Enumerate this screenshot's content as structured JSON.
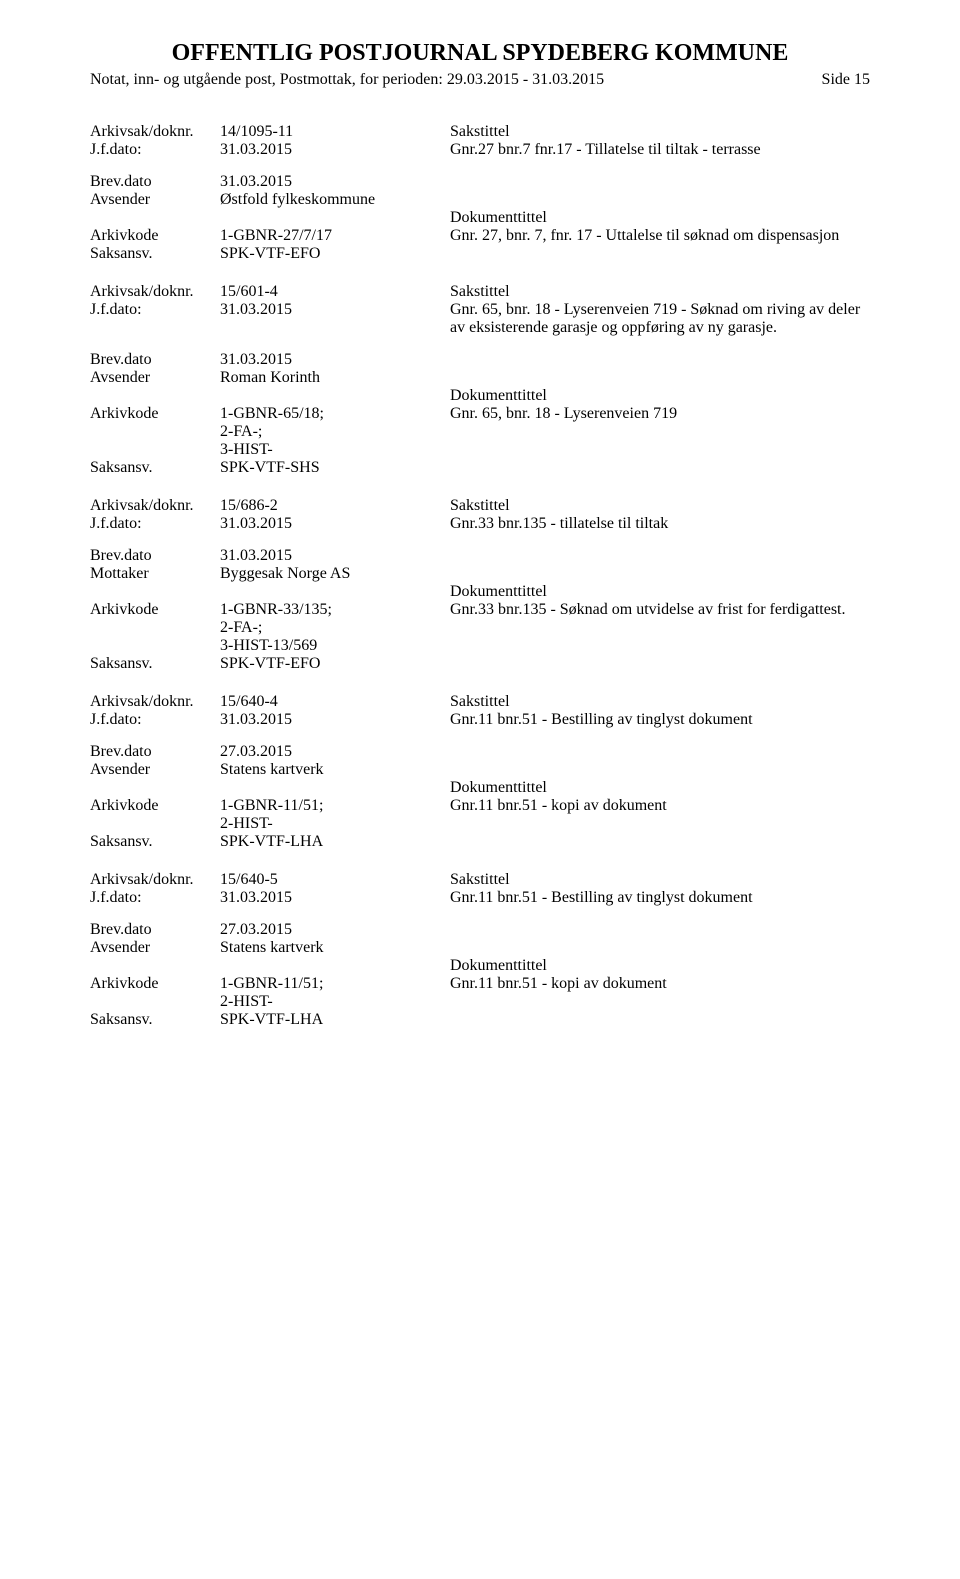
{
  "header": {
    "title": "OFFENTLIG POSTJOURNAL SPYDEBERG KOMMUNE",
    "subtitle": "Notat, inn- og utgående post, Postmottak, for perioden: 29.03.2015 - 31.03.2015",
    "page_label": "Side 15"
  },
  "labels": {
    "arkivsak": "Arkivsak/doknr.",
    "jfdato": "J.f.dato:",
    "brevdato": "Brev.dato",
    "avsender": "Avsender",
    "mottaker": "Mottaker",
    "arkivkode": "Arkivkode",
    "saksansv": "Saksansv.",
    "sakstittel": "Sakstittel",
    "dokumenttittel": "Dokumenttittel"
  },
  "entries": [
    {
      "arkivsak": "14/1095-11",
      "jfdato": "31.03.2015",
      "sakstittel": "Gnr.27 bnr.7 fnr.17 - Tillatelse til tiltak - terrasse",
      "brevdato": "31.03.2015",
      "party_label": "Avsender",
      "party": "Østfold fylkeskommune",
      "arkivkode": "1-GBNR-27/7/17",
      "saksansv": "SPK-VTF-EFO",
      "doktittel": "Gnr. 27, bnr. 7, fnr. 17 - Uttalelse til søknad om dispensasjon"
    },
    {
      "arkivsak": "15/601-4",
      "jfdato": "31.03.2015",
      "sakstittel": "Gnr. 65, bnr. 18 - Lyserenveien 719 - Søknad om riving av deler av eksisterende garasje og oppføring av ny garasje.",
      "brevdato": "31.03.2015",
      "party_label": "Avsender",
      "party": "Roman Korinth",
      "arkivkode": "1-GBNR-65/18;\n2-FA-;\n3-HIST-",
      "saksansv": "SPK-VTF-SHS",
      "doktittel": "Gnr. 65, bnr. 18 - Lyserenveien 719"
    },
    {
      "arkivsak": "15/686-2",
      "jfdato": "31.03.2015",
      "sakstittel": "Gnr.33 bnr.135 -  tillatelse til tiltak",
      "brevdato": "31.03.2015",
      "party_label": "Mottaker",
      "party": "Byggesak Norge AS",
      "arkivkode": "1-GBNR-33/135;\n2-FA-;\n3-HIST-13/569",
      "saksansv": "SPK-VTF-EFO",
      "doktittel": "Gnr.33 bnr.135 - Søknad om utvidelse av frist for ferdigattest."
    },
    {
      "arkivsak": "15/640-4",
      "jfdato": "31.03.2015",
      "sakstittel": "Gnr.11 bnr.51 - Bestilling av tinglyst dokument",
      "brevdato": "27.03.2015",
      "party_label": "Avsender",
      "party": "Statens kartverk",
      "arkivkode": "1-GBNR-11/51;\n2-HIST-",
      "saksansv": "SPK-VTF-LHA",
      "doktittel": "Gnr.11 bnr.51 - kopi av dokument"
    },
    {
      "arkivsak": "15/640-5",
      "jfdato": "31.03.2015",
      "sakstittel": "Gnr.11 bnr.51 - Bestilling av tinglyst dokument",
      "brevdato": "27.03.2015",
      "party_label": "Avsender",
      "party": "Statens kartverk",
      "arkivkode": "1-GBNR-11/51;\n2-HIST-",
      "saksansv": "SPK-VTF-LHA",
      "doktittel": "Gnr.11 bnr.51 - kopi av dokument"
    }
  ]
}
